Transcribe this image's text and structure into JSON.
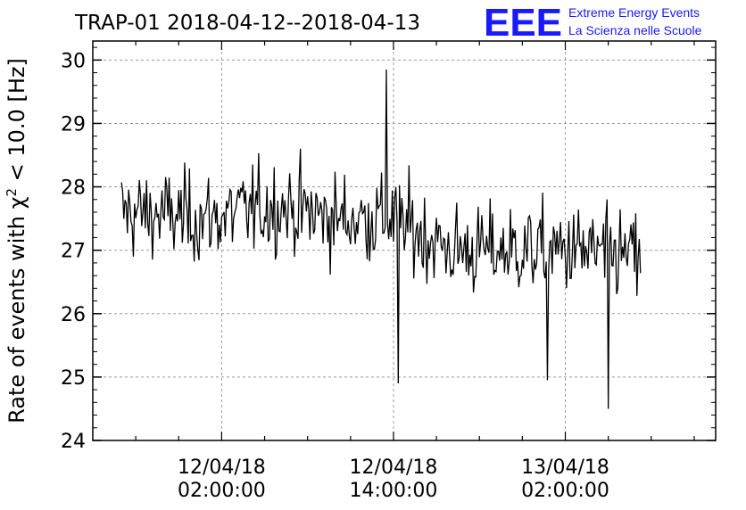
{
  "chart_data": {
    "type": "line",
    "title": "TRAP-01 2018-04-12--2018-04-13",
    "ylabel_parts": [
      "Rate of events with ",
      "χ",
      "2",
      " < 10.0 [Hz]"
    ],
    "xlabel": "",
    "ylim": [
      24,
      30.3
    ],
    "yticks": [
      "24",
      "25",
      "26",
      "27",
      "28",
      "29",
      "30"
    ],
    "xlim": [
      "2018-04-11 17:00:00",
      "2018-04-13 12:30:00"
    ],
    "xticks": [
      {
        "date": "12/04/18",
        "time": "02:00:00",
        "at": "2018-04-12 02:00:00"
      },
      {
        "date": "12/04/18",
        "time": "14:00:00",
        "at": "2018-04-12 14:00:00"
      },
      {
        "date": "13/04/18",
        "time": "02:00:00",
        "at": "2018-04-13 02:00:00"
      }
    ],
    "grid": true,
    "series": [
      {
        "color": "#000000",
        "x_start": "2018-04-11 19:00:00",
        "x_end": "2018-04-13 07:15:00",
        "mean_segments": [
          {
            "x": "2018-04-11 19:00:00",
            "y": 27.6
          },
          {
            "x": "2018-04-12 01:00:00",
            "y": 27.5
          },
          {
            "x": "2018-04-12 06:00:00",
            "y": 27.7
          },
          {
            "x": "2018-04-12 10:00:00",
            "y": 27.5
          },
          {
            "x": "2018-04-12 14:00:00",
            "y": 27.5
          },
          {
            "x": "2018-04-12 18:00:00",
            "y": 27.0
          },
          {
            "x": "2018-04-12 22:00:00",
            "y": 27.0
          },
          {
            "x": "2018-04-13 02:00:00",
            "y": 27.0
          },
          {
            "x": "2018-04-13 07:15:00",
            "y": 26.9
          }
        ],
        "notable_points": [
          {
            "x": "2018-04-12 13:30:00",
            "y": 29.85
          },
          {
            "x": "2018-04-12 14:20:00",
            "y": 24.9
          },
          {
            "x": "2018-04-13 00:45:00",
            "y": 24.95
          },
          {
            "x": "2018-04-13 05:00:00",
            "y": 24.5
          }
        ]
      }
    ]
  },
  "logo": {
    "mark": "EEE",
    "line1": "Extreme Energy Events",
    "line2": "La Scienza nelle Scuole"
  }
}
